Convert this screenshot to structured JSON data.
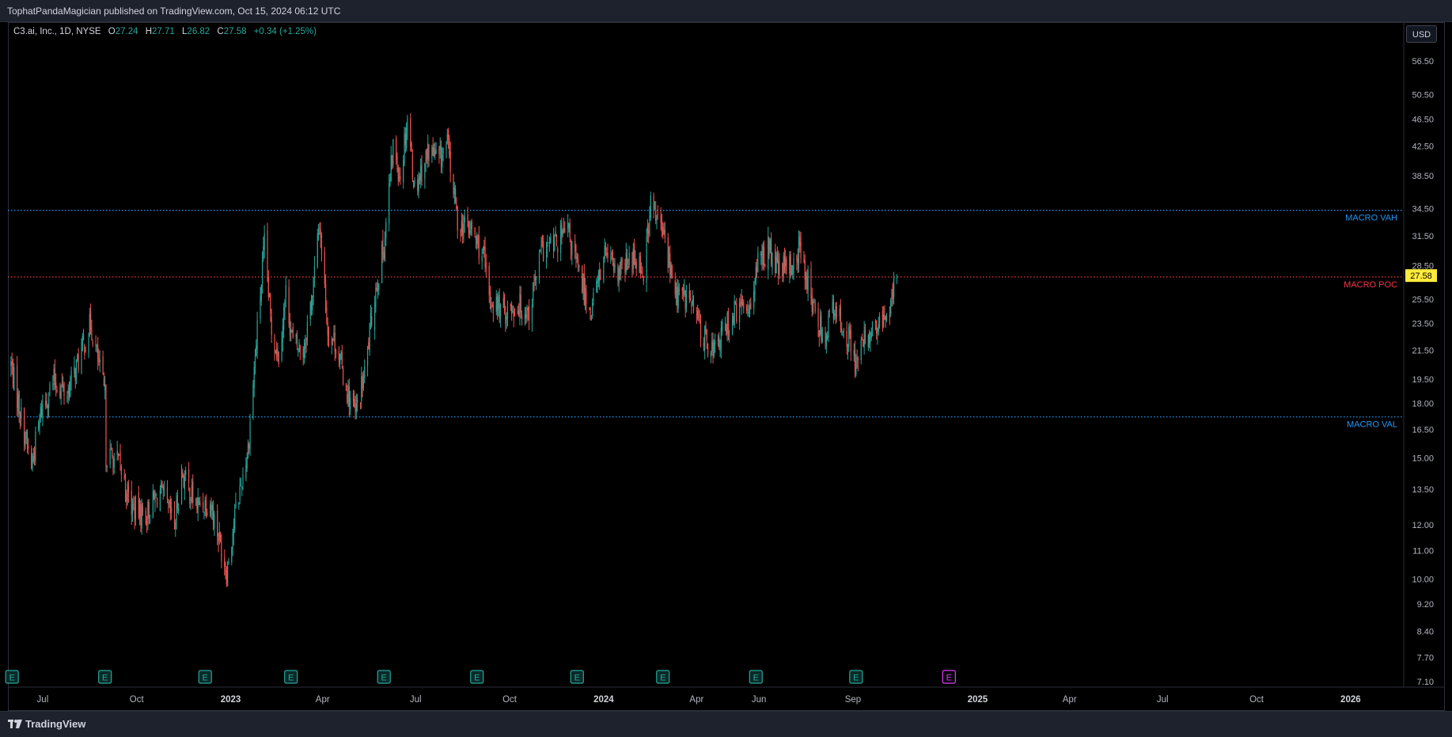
{
  "header": {
    "published_text": "TophatPandaMagician published on TradingView.com, Oct 15, 2024 06:12 UTC"
  },
  "footer": {
    "brand": "TradingView"
  },
  "legend": {
    "symbol": "C3.ai, Inc., 1D, NYSE",
    "open_label": "O",
    "open": "27.24",
    "high_label": "H",
    "high": "27.71",
    "low_label": "L",
    "low": "26.82",
    "close_label": "C",
    "close": "27.58",
    "change": "+0.34 (+1.25%)"
  },
  "currency_button": "USD",
  "colors": {
    "up": "#26a69a",
    "down": "#ef5350",
    "vah_val": "#2196f3",
    "poc": "#f23645",
    "last_price_bg": "#ffeb3b",
    "earnings_past": "#26a69a",
    "earnings_future": "#e040fb"
  },
  "icons": {
    "earnings_marker": "earnings-e-icon",
    "brand_logo": "tradingview-logo-icon"
  },
  "chart_data": {
    "type": "candlestick",
    "y_scale": "log",
    "ylim": [
      6.9,
      61
    ],
    "y_ticks": [
      "56.50",
      "50.50",
      "46.50",
      "42.50",
      "38.50",
      "34.50",
      "31.50",
      "28.50",
      "25.50",
      "23.50",
      "21.50",
      "19.50",
      "18.00",
      "16.50",
      "15.00",
      "13.50",
      "12.00",
      "11.00",
      "10.00",
      "9.20",
      "8.40",
      "7.70",
      "7.10"
    ],
    "x_ticks": [
      "Jul",
      "Oct",
      "2023",
      "Apr",
      "Jul",
      "Oct",
      "2024",
      "Apr",
      "Jun",
      "Sep",
      "2025",
      "Apr",
      "Jul",
      "Oct",
      "2026"
    ],
    "bold_x_ticks": [
      "2023",
      "2024",
      "2025",
      "2026"
    ],
    "last_price": "27.58",
    "price_path": [
      [
        "2022-05-31",
        20.5
      ],
      [
        "2022-06-10",
        17.2
      ],
      [
        "2022-06-20",
        14.6
      ],
      [
        "2022-06-30",
        17.7
      ],
      [
        "2022-07-12",
        19.4
      ],
      [
        "2022-07-25",
        18.6
      ],
      [
        "2022-08-08",
        21.4
      ],
      [
        "2022-08-17",
        23.5
      ],
      [
        "2022-08-31",
        18.4
      ],
      [
        "2022-09-01",
        15.2
      ],
      [
        "2022-09-13",
        14.8
      ],
      [
        "2022-09-26",
        12.7
      ],
      [
        "2022-10-10",
        12.4
      ],
      [
        "2022-10-24",
        13.4
      ],
      [
        "2022-11-07",
        12.0
      ],
      [
        "2022-11-14",
        14.3
      ],
      [
        "2022-11-28",
        12.8
      ],
      [
        "2022-12-12",
        13.0
      ],
      [
        "2022-12-28",
        10.3
      ],
      [
        "2023-01-06",
        12.6
      ],
      [
        "2023-01-18",
        15.5
      ],
      [
        "2023-01-27",
        23.0
      ],
      [
        "2023-02-03",
        30.5
      ],
      [
        "2023-02-10",
        23.0
      ],
      [
        "2023-02-17",
        21.2
      ],
      [
        "2023-02-24",
        26.0
      ],
      [
        "2023-03-03",
        22.0
      ],
      [
        "2023-03-13",
        21.5
      ],
      [
        "2023-03-22",
        26.0
      ],
      [
        "2023-03-29",
        33.0
      ],
      [
        "2023-04-06",
        23.0
      ],
      [
        "2023-04-14",
        22.0
      ],
      [
        "2023-04-24",
        19.0
      ],
      [
        "2023-05-03",
        17.3
      ],
      [
        "2023-05-12",
        19.8
      ],
      [
        "2023-05-22",
        26.0
      ],
      [
        "2023-05-31",
        30.5
      ],
      [
        "2023-06-09",
        42.5
      ],
      [
        "2023-06-16",
        38.5
      ],
      [
        "2023-06-23",
        47.0
      ],
      [
        "2023-06-30",
        37.0
      ],
      [
        "2023-07-14",
        42.0
      ],
      [
        "2023-07-24",
        40.5
      ],
      [
        "2023-08-01",
        43.0
      ],
      [
        "2023-08-11",
        33.0
      ],
      [
        "2023-08-25",
        32.0
      ],
      [
        "2023-09-05",
        29.5
      ],
      [
        "2023-09-11",
        25.5
      ],
      [
        "2023-09-25",
        24.5
      ],
      [
        "2023-10-10",
        25.0
      ],
      [
        "2023-10-20",
        24.5
      ],
      [
        "2023-11-01",
        30.0
      ],
      [
        "2023-11-13",
        30.5
      ],
      [
        "2023-11-27",
        32.0
      ],
      [
        "2023-12-07",
        28.0
      ],
      [
        "2023-12-19",
        24.5
      ],
      [
        "2024-01-03",
        30.0
      ],
      [
        "2024-01-12",
        27.5
      ],
      [
        "2024-02-02",
        29.5
      ],
      [
        "2024-02-09",
        28.0
      ],
      [
        "2024-02-16",
        35.0
      ],
      [
        "2024-02-29",
        31.5
      ],
      [
        "2024-03-11",
        26.0
      ],
      [
        "2024-03-25",
        25.5
      ],
      [
        "2024-04-08",
        22.5
      ],
      [
        "2024-04-19",
        21.5
      ],
      [
        "2024-05-01",
        23.5
      ],
      [
        "2024-05-10",
        24.5
      ],
      [
        "2024-05-22",
        25.0
      ],
      [
        "2024-05-31",
        28.5
      ],
      [
        "2024-06-10",
        30.5
      ],
      [
        "2024-06-14",
        29.0
      ],
      [
        "2024-06-21",
        28.0
      ],
      [
        "2024-07-03",
        28.5
      ],
      [
        "2024-07-10",
        30.0
      ],
      [
        "2024-07-17",
        28.0
      ],
      [
        "2024-07-26",
        24.0
      ],
      [
        "2024-08-05",
        22.5
      ],
      [
        "2024-08-09",
        24.5
      ],
      [
        "2024-08-23",
        23.5
      ],
      [
        "2024-09-05",
        20.5
      ],
      [
        "2024-09-13",
        22.5
      ],
      [
        "2024-09-24",
        23.0
      ],
      [
        "2024-10-04",
        24.0
      ],
      [
        "2024-10-14",
        27.58
      ]
    ],
    "annotations": [
      {
        "text": "MACRO VAH",
        "price": 34.3,
        "style": "dotted",
        "color": "#2196f3"
      },
      {
        "text": "MACRO POC",
        "price": 27.45,
        "style": "dotted",
        "color": "#f23645"
      },
      {
        "text": "MACRO VAL",
        "price": 17.2,
        "style": "dotted",
        "color": "#2196f3"
      }
    ],
    "earnings_dates": [
      "2022-06-01",
      "2022-08-31",
      "2022-12-07",
      "2023-03-01",
      "2023-05-31",
      "2023-08-30",
      "2023-12-06",
      "2024-02-28",
      "2024-05-29",
      "2024-09-04"
    ],
    "upcoming_earnings_date": "2024-12-04"
  }
}
